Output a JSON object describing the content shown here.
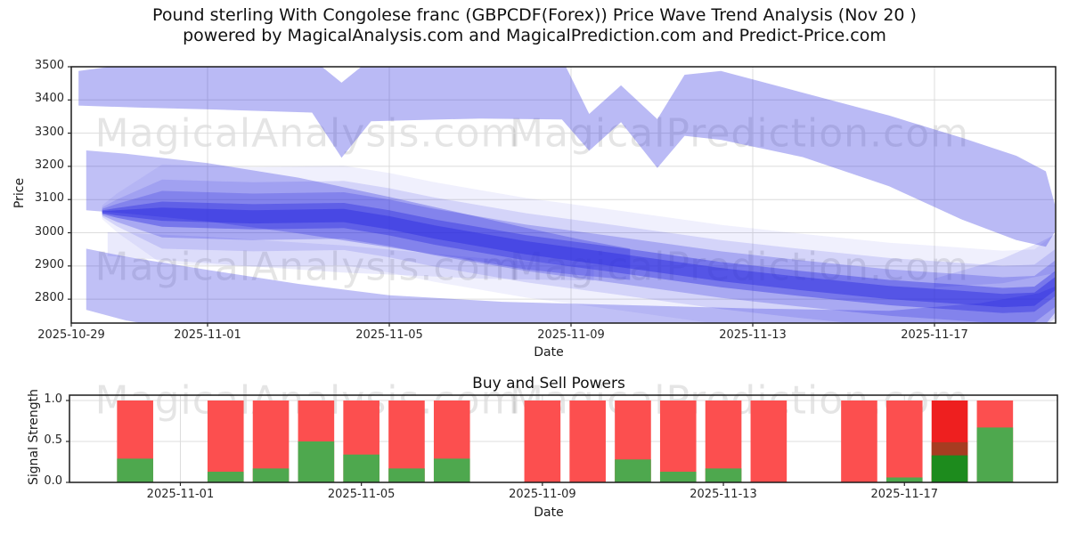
{
  "figure": {
    "title_line1": "Pound sterling With Congolese franc (GBPCDF(Forex)) Price Wave Trend Analysis (Nov 20 )",
    "title_line2": "powered by MagicalAnalysis.com and MagicalPrediction.com and Predict-Price.com"
  },
  "watermarks": {
    "left": "MagicalAnalysis.com",
    "right": "MagicalPrediction.com"
  },
  "top_chart": {
    "ylabel": "Price",
    "xlabel": "Date",
    "y_ticks": [
      "3500",
      "3400",
      "3300",
      "3200",
      "3100",
      "3000",
      "2900",
      "2800"
    ],
    "x_ticks": [
      "2025-10-29",
      "2025-11-01",
      "2025-11-05",
      "2025-11-09",
      "2025-11-13",
      "2025-11-17"
    ]
  },
  "bottom_chart": {
    "title": "Buy and Sell Powers",
    "ylabel": "Signal Strength",
    "xlabel": "Date",
    "y_ticks": [
      "0.0",
      "0.5",
      "1.0"
    ],
    "x_ticks": [
      "2025-11-01",
      "2025-11-05",
      "2025-11-09",
      "2025-11-13",
      "2025-11-17"
    ]
  },
  "chart_data": [
    {
      "type": "area",
      "title": "Price Wave Trend Analysis",
      "xlabel": "Date",
      "ylabel": "Price",
      "x_unit": "days since 2025-10-29",
      "ylim": [
        2728,
        3500
      ],
      "xlim_days": [
        0,
        21.67
      ],
      "grid": true,
      "band_color": "#2d2de0",
      "y_tick_values": [
        3500,
        3400,
        3300,
        3200,
        3100,
        3000,
        2900,
        2800
      ],
      "x_tick_days": [
        0,
        3,
        7,
        11,
        15,
        19
      ],
      "x_tick_labels": [
        "2025-10-29",
        "2025-11-01",
        "2025-11-05",
        "2025-11-09",
        "2025-11-13",
        "2025-11-17"
      ],
      "bands": [
        {
          "name": "upper-forecast-band",
          "alpha": 0.33,
          "x": [
            0.16,
            1.5,
            3.2,
            5.3,
            5.95,
            6.6,
            9.0,
            10.8,
            11.4,
            12.1,
            12.9,
            13.5,
            14.3,
            16.1,
            18.0,
            19.6,
            20.8,
            21.45,
            21.65
          ],
          "upper": [
            3487,
            3512,
            3524,
            3524,
            3452,
            3524,
            3524,
            3524,
            3358,
            3444,
            3342,
            3476,
            3487,
            3422,
            3353,
            3286,
            3232,
            3185,
            3085
          ],
          "lower": [
            3383,
            3377,
            3371,
            3362,
            3226,
            3336,
            3344,
            3341,
            3247,
            3333,
            3195,
            3292,
            3280,
            3228,
            3140,
            3040,
            2978,
            2958,
            3002
          ]
        },
        {
          "name": "mid-descending-band",
          "alpha": 0.3,
          "x": [
            0.33,
            1.2,
            3.0,
            5.0,
            7.0,
            8.5,
            10.0,
            11.2,
            12.3
          ],
          "upper": [
            3248,
            3238,
            3210,
            3166,
            3108,
            3062,
            3015,
            2980,
            2952
          ],
          "lower": [
            3068,
            3058,
            3034,
            2998,
            2956,
            2924,
            2890,
            2872,
            2858
          ]
        },
        {
          "name": "lower-forecast-band",
          "alpha": 0.3,
          "x": [
            0.33,
            1.2,
            3.0,
            5.0,
            7.0,
            9.5,
            12.0,
            15.0,
            18.0,
            20.0,
            21.3,
            21.65
          ],
          "upper": [
            2952,
            2928,
            2888,
            2846,
            2812,
            2792,
            2783,
            2772,
            2765,
            2788,
            2818,
            2838
          ],
          "lower": [
            2768,
            2736,
            2693,
            2665,
            2650,
            2645,
            2640,
            2638,
            2636,
            2650,
            2700,
            2758
          ]
        },
        {
          "name": "pale-wedge-band",
          "alpha": 0.1,
          "x": [
            0.8,
            3.0,
            6.0,
            9.0,
            11.5
          ],
          "upper": [
            3002,
            2988,
            2962,
            2924,
            2898
          ],
          "lower": [
            2930,
            2908,
            2880,
            2862,
            2856
          ]
        }
      ],
      "polygons": [
        {
          "name": "right-end-flare",
          "alpha": 0.13,
          "points": [
            [
              19.0,
              2862
            ],
            [
              20.5,
              2922
            ],
            [
              21.3,
              2970
            ],
            [
              21.65,
              2995
            ],
            [
              21.65,
              2878
            ],
            [
              20.5,
              2848
            ],
            [
              19.0,
              2836
            ]
          ]
        }
      ],
      "ensemble": {
        "x": [
          0.68,
          1.0,
          2.0,
          4.0,
          6.0,
          7.0,
          8.0,
          10.0,
          12.0,
          14.3,
          16.0,
          18.0,
          19.5,
          20.5,
          21.2,
          21.65
        ],
        "center": [
          3062,
          3060,
          3056,
          3048,
          3052,
          3030,
          3002,
          2955,
          2918,
          2874,
          2848,
          2820,
          2806,
          2796,
          2800,
          2846
        ],
        "layers": [
          {
            "half_width": 150,
            "alpha": 0.07
          },
          {
            "half_width": 104,
            "alpha": 0.14
          },
          {
            "half_width": 70,
            "alpha": 0.26
          },
          {
            "half_width": 38,
            "alpha": 0.4
          },
          {
            "half_width": 20,
            "alpha": 0.45
          }
        ]
      }
    },
    {
      "type": "bar",
      "title": "Buy and Sell Powers",
      "xlabel": "Date",
      "ylabel": "Signal Strength",
      "ylim": [
        0,
        1.065
      ],
      "y_tick_values": [
        0.0,
        0.5,
        1.0
      ],
      "x_tick_days": [
        3,
        7,
        11,
        15,
        19
      ],
      "x_tick_labels": [
        "2025-11-01",
        "2025-11-05",
        "2025-11-09",
        "2025-11-13",
        "2025-11-17"
      ],
      "colors": {
        "sell": "#fc4f4f",
        "buy": "#4ea84e",
        "sell_strong": "#ee1f1f",
        "buy_strong": "#1d8b1d",
        "overlap": "#a73c21"
      },
      "bars": [
        {
          "date": "2025-10-31",
          "day": 2,
          "sell": 1.0,
          "buy": 0.29
        },
        {
          "date": "2025-11-02",
          "day": 4,
          "sell": 1.0,
          "buy": 0.13
        },
        {
          "date": "2025-11-03",
          "day": 5,
          "sell": 1.0,
          "buy": 0.17
        },
        {
          "date": "2025-11-04",
          "day": 6,
          "sell": 1.0,
          "buy": 0.5
        },
        {
          "date": "2025-11-05",
          "day": 7,
          "sell": 1.0,
          "buy": 0.34
        },
        {
          "date": "2025-11-06",
          "day": 8,
          "sell": 1.0,
          "buy": 0.17
        },
        {
          "date": "2025-11-07",
          "day": 9,
          "sell": 1.0,
          "buy": 0.29
        },
        {
          "date": "2025-11-09",
          "day": 11,
          "sell": 1.0,
          "buy": 0.0
        },
        {
          "date": "2025-11-10",
          "day": 12,
          "sell": 1.0,
          "buy": 0.0
        },
        {
          "date": "2025-11-11",
          "day": 13,
          "sell": 1.0,
          "buy": 0.28
        },
        {
          "date": "2025-11-12",
          "day": 14,
          "sell": 1.0,
          "buy": 0.13
        },
        {
          "date": "2025-11-13",
          "day": 15,
          "sell": 1.0,
          "buy": 0.17
        },
        {
          "date": "2025-11-14",
          "day": 16,
          "sell": 1.0,
          "buy": 0.0
        },
        {
          "date": "2025-11-16",
          "day": 18,
          "sell": 1.0,
          "buy": 0.0
        },
        {
          "date": "2025-11-17",
          "day": 19,
          "sell": 1.0,
          "buy": 0.06
        },
        {
          "date": "2025-11-18",
          "day": 20,
          "sell": 1.0,
          "buy": 0.33,
          "overlap": 0.49,
          "strong": true
        },
        {
          "date": "2025-11-19",
          "day": 21,
          "sell": 1.0,
          "buy": 0.67
        }
      ]
    }
  ]
}
